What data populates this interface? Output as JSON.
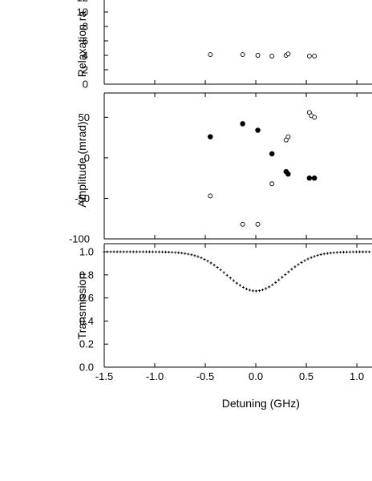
{
  "chart_data": [
    {
      "type": "scatter",
      "ylabel": "Relaxation ra",
      "xlim": [
        -1.5,
        1.15
      ],
      "ylim": [
        0,
        13
      ],
      "yticks": [
        "0",
        "2",
        "4",
        "6",
        "8",
        "10",
        "12"
      ],
      "series": [
        {
          "marker": "open-circle",
          "x": [
            -0.45,
            -0.13,
            0.02,
            0.16,
            0.3,
            0.32,
            0.53,
            0.58
          ],
          "y": [
            4.1,
            4.1,
            4.0,
            3.9,
            4.0,
            4.2,
            3.9,
            3.9
          ]
        }
      ]
    },
    {
      "type": "scatter",
      "ylabel": "Amplitude (mrad)",
      "xlim": [
        -1.5,
        1.15
      ],
      "ylim": [
        -100,
        80
      ],
      "yticks": [
        "50",
        "-0",
        "-50",
        "-100"
      ],
      "series": [
        {
          "marker": "filled-circle",
          "x": [
            -0.45,
            -0.13,
            0.02,
            0.16,
            0.3,
            0.32,
            0.53,
            0.58
          ],
          "y": [
            26,
            42,
            34,
            5,
            -17,
            -20,
            -25,
            -25
          ]
        },
        {
          "marker": "open-circle",
          "x": [
            -0.45,
            -0.13,
            0.02,
            0.16,
            0.3,
            0.32,
            0.53,
            0.55,
            0.58
          ],
          "y": [
            -47,
            -82,
            -82,
            -32,
            22,
            26,
            56,
            52,
            50
          ]
        }
      ]
    },
    {
      "type": "line",
      "ylabel": "Transmission",
      "xlabel": "Detuning (GHz)",
      "xlim": [
        -1.5,
        1.15
      ],
      "ylim": [
        0.0,
        1.07
      ],
      "xticks": [
        "-1.5",
        "-1.0",
        "-0.5",
        "0.0",
        "0.5",
        "1.0"
      ],
      "yticks": [
        "0.0",
        "0.2",
        "0.4",
        "0.6",
        "0.8",
        "1.0"
      ],
      "series": [
        {
          "marker": "plus",
          "curve": {
            "baseline": 1.0,
            "center": 0.0,
            "depth": 0.34,
            "width_sigma": 0.28
          }
        }
      ]
    }
  ]
}
